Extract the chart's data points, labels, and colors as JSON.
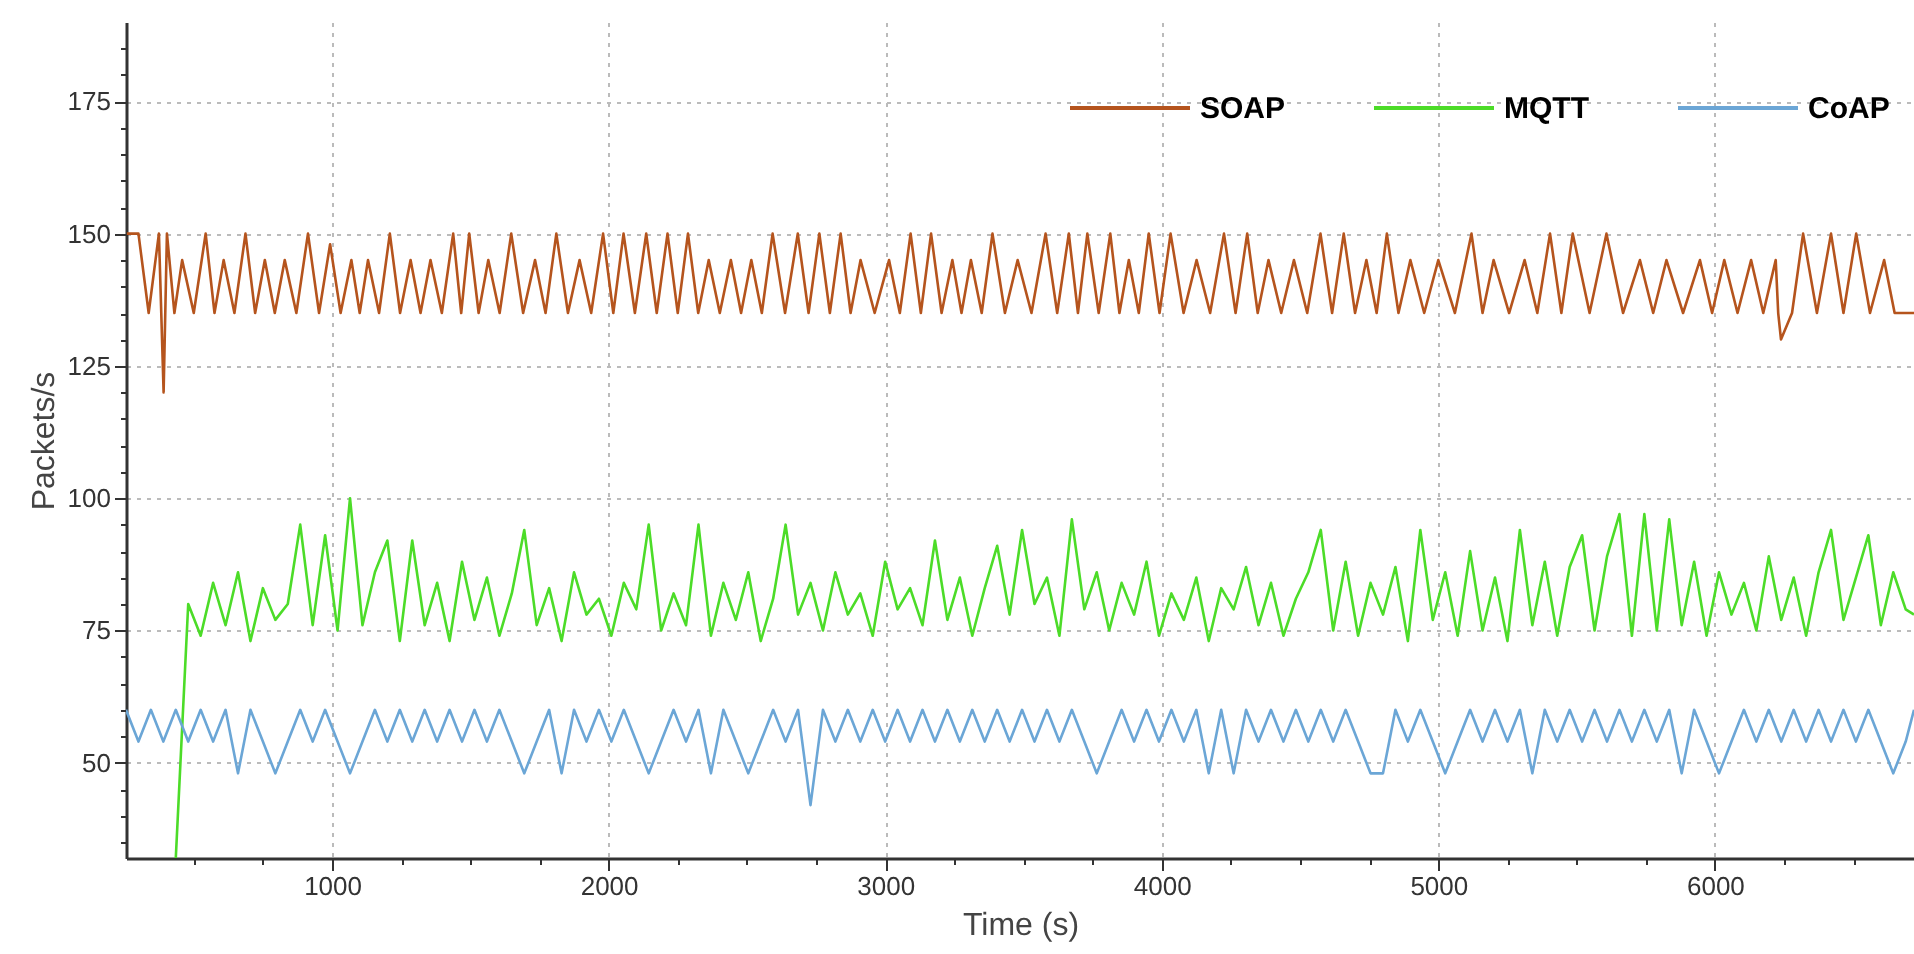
{
  "chart_data": {
    "type": "line",
    "xlabel": "Time (s)",
    "ylabel": "Packets/s",
    "xlim": [
      255,
      6720
    ],
    "ylim": [
      32,
      190
    ],
    "xticks": [
      {
        "value": 500,
        "label": null
      },
      {
        "value": 750,
        "label": null
      },
      1000,
      {
        "value": 1250,
        "label": null
      },
      {
        "value": 1500,
        "label": null
      },
      {
        "value": 1750,
        "label": null
      },
      2000,
      {
        "value": 2250,
        "label": null
      },
      {
        "value": 2500,
        "label": null
      },
      {
        "value": 2750,
        "label": null
      },
      3000,
      {
        "value": 3250,
        "label": null
      },
      {
        "value": 3500,
        "label": null
      },
      {
        "value": 3750,
        "label": null
      },
      4000,
      {
        "value": 4250,
        "label": null
      },
      {
        "value": 4500,
        "label": null
      },
      {
        "value": 4750,
        "label": null
      },
      5000,
      {
        "value": 5250,
        "label": null
      },
      {
        "value": 5500,
        "label": null
      },
      {
        "value": 5750,
        "label": null
      },
      6000,
      {
        "value": 6250,
        "label": null
      },
      {
        "value": 6500,
        "label": null
      }
    ],
    "yticks": [
      {
        "value": 35,
        "label": null
      },
      {
        "value": 40,
        "label": null
      },
      {
        "value": 45,
        "label": null
      },
      50,
      {
        "value": 55,
        "label": null
      },
      {
        "value": 60,
        "label": null
      },
      {
        "value": 65,
        "label": null
      },
      {
        "value": 70,
        "label": null
      },
      75,
      {
        "value": 80,
        "label": null
      },
      {
        "value": 85,
        "label": null
      },
      {
        "value": 90,
        "label": null
      },
      {
        "value": 95,
        "label": null
      },
      100,
      {
        "value": 105,
        "label": null
      },
      {
        "value": 110,
        "label": null
      },
      {
        "value": 115,
        "label": null
      },
      {
        "value": 120,
        "label": null
      },
      125,
      {
        "value": 130,
        "label": null
      },
      {
        "value": 135,
        "label": null
      },
      {
        "value": 140,
        "label": null
      },
      {
        "value": 145,
        "label": null
      },
      150,
      {
        "value": 155,
        "label": null
      },
      {
        "value": 160,
        "label": null
      },
      {
        "value": 165,
        "label": null
      },
      {
        "value": 170,
        "label": null
      },
      175,
      {
        "value": 180,
        "label": null
      },
      {
        "value": 185,
        "label": null
      }
    ],
    "grid": true,
    "legend": "top right",
    "x": [
      255,
      300,
      345,
      390,
      435,
      480,
      525,
      570,
      615,
      660,
      705,
      750,
      795,
      840,
      885,
      930,
      975,
      1020,
      1065,
      1110,
      1155,
      1200,
      1245,
      1290,
      1335,
      1380,
      1425,
      1470,
      1515,
      1560,
      1605,
      1650,
      1695,
      1740,
      1785,
      1830,
      1875,
      1920,
      1965,
      2010,
      2055,
      2100,
      2145,
      2190,
      2235,
      2280,
      2325,
      2370,
      2415,
      2460,
      2505,
      2550,
      2595,
      2640,
      2685,
      2730,
      2775,
      2820,
      2865,
      2910,
      2955,
      3000,
      3045,
      3090,
      3135,
      3180,
      3225,
      3270,
      3315,
      3360,
      3405,
      3450,
      3495,
      3540,
      3585,
      3630,
      3675,
      3720,
      3765,
      3810,
      3855,
      3900,
      3945,
      3990,
      4035,
      4080,
      4125,
      4170,
      4215,
      4260,
      4305,
      4350,
      4395,
      4440,
      4485,
      4530,
      4575,
      4620,
      4665,
      4710,
      4755,
      4800,
      4845,
      4890,
      4935,
      4980,
      5025,
      5070,
      5115,
      5160,
      5205,
      5250,
      5295,
      5340,
      5385,
      5430,
      5475,
      5520,
      5565,
      5610,
      5655,
      5700,
      5745,
      5790,
      5835,
      5880,
      5925,
      5970,
      6015,
      6060,
      6105,
      6150,
      6195,
      6240,
      6285,
      6330,
      6375,
      6420,
      6465,
      6510,
      6555,
      6600,
      6645,
      6690,
      6720
    ],
    "series": [
      {
        "name": "SOAP",
        "color": "#b5541d",
        "x": [
          258,
          300,
          337,
          374,
          391,
          403,
          430,
          458,
          500,
          543,
          575,
          608,
          647,
          687,
          722,
          757,
          793,
          829,
          871,
          913,
          953,
          993,
          1031,
          1070,
          1100,
          1130,
          1170,
          1209,
          1246,
          1284,
          1320,
          1356,
          1397,
          1438,
          1467,
          1496,
          1530,
          1565,
          1606,
          1648,
          1691,
          1734,
          1772,
          1811,
          1853,
          1895,
          1937,
          1980,
          2017,
          2054,
          2095,
          2136,
          2174,
          2213,
          2250,
          2287,
          2324,
          2362,
          2402,
          2442,
          2479,
          2516,
          2554,
          2593,
          2638,
          2684,
          2723,
          2762,
          2800,
          2839,
          2875,
          2911,
          2962,
          3014,
          3053,
          3092,
          3129,
          3166,
          3204,
          3243,
          3276,
          3310,
          3349,
          3388,
          3433,
          3479,
          3529,
          3580,
          3622,
          3664,
          3697,
          3731,
          3772,
          3814,
          3847,
          3881,
          3917,
          3953,
          3992,
          4032,
          4079,
          4126,
          4175,
          4225,
          4267,
          4309,
          4347,
          4386,
          4432,
          4478,
          4526,
          4574,
          4616,
          4658,
          4699,
          4740,
          4777,
          4814,
          4856,
          4899,
          4949,
          5000,
          5060,
          5120,
          5160,
          5200,
          5256,
          5312,
          5358,
          5404,
          5445,
          5486,
          5547,
          5608,
          5668,
          5729,
          5777,
          5825,
          5885,
          5946,
          5990,
          6034,
          6082,
          6131,
          6175,
          6220,
          6229,
          6239,
          6279,
          6319,
          6369,
          6420,
          6465,
          6511,
          6561,
          6612,
          6650,
          6720
        ],
        "values": [
          150,
          150,
          135,
          150,
          120,
          150,
          135,
          145,
          135,
          150,
          135,
          145,
          135,
          150,
          135,
          145,
          135,
          145,
          135,
          150,
          135,
          148,
          135,
          145,
          135,
          145,
          135,
          150,
          135,
          145,
          135,
          145,
          135,
          150,
          135,
          150,
          135,
          145,
          135,
          150,
          135,
          145,
          135,
          150,
          135,
          145,
          135,
          150,
          135,
          150,
          135,
          150,
          135,
          150,
          135,
          150,
          135,
          145,
          135,
          145,
          135,
          145,
          135,
          150,
          135,
          150,
          135,
          150,
          135,
          150,
          135,
          145,
          135,
          145,
          135,
          150,
          135,
          150,
          135,
          145,
          135,
          145,
          135,
          150,
          135,
          145,
          135,
          150,
          135,
          150,
          135,
          150,
          135,
          150,
          135,
          145,
          135,
          150,
          135,
          150,
          135,
          145,
          135,
          150,
          135,
          150,
          135,
          145,
          135,
          145,
          135,
          150,
          135,
          150,
          135,
          145,
          135,
          150,
          135,
          145,
          135,
          145,
          135,
          150,
          135,
          145,
          135,
          145,
          135,
          150,
          135,
          150,
          135,
          150,
          135,
          145,
          135,
          145,
          135,
          145,
          135,
          145,
          135,
          145,
          135,
          145,
          135,
          130,
          135,
          150,
          135,
          150,
          135,
          150,
          135,
          145,
          135,
          135
        ]
      },
      {
        "name": "MQTT",
        "color": "#4cdc28",
        "values": [
          null,
          null,
          null,
          null,
          32,
          80,
          74,
          84,
          76,
          86,
          73,
          83,
          77,
          80,
          95,
          76,
          93,
          75,
          100,
          76,
          86,
          92,
          73,
          92,
          76,
          84,
          73,
          88,
          77,
          85,
          74,
          82,
          94,
          76,
          83,
          73,
          86,
          78,
          81,
          74,
          84,
          79,
          95,
          75,
          82,
          76,
          95,
          74,
          84,
          77,
          86,
          73,
          81,
          95,
          78,
          84,
          75,
          86,
          78,
          82,
          74,
          88,
          79,
          83,
          76,
          92,
          77,
          85,
          74,
          83,
          91,
          78,
          94,
          80,
          85,
          74,
          96,
          79,
          86,
          75,
          84,
          78,
          88,
          74,
          82,
          77,
          85,
          73,
          83,
          79,
          87,
          76,
          84,
          74,
          81,
          86,
          94,
          75,
          88,
          74,
          84,
          78,
          87,
          73,
          94,
          77,
          86,
          74,
          90,
          75,
          85,
          73,
          94,
          76,
          88,
          74,
          87,
          93,
          75,
          89,
          97,
          74,
          97,
          75,
          96,
          76,
          88,
          74,
          86,
          78,
          84,
          75,
          89,
          77,
          85,
          74,
          86,
          94,
          77,
          85,
          93,
          76,
          86,
          79,
          78
        ]
      },
      {
        "name": "CoAP",
        "color": "#6ba6d6",
        "values": [
          60,
          54,
          60,
          54,
          60,
          54,
          60,
          54,
          60,
          48,
          60,
          54,
          48,
          54,
          60,
          54,
          60,
          54,
          48,
          54,
          60,
          54,
          60,
          54,
          60,
          54,
          60,
          54,
          60,
          54,
          60,
          54,
          48,
          54,
          60,
          48,
          60,
          54,
          60,
          54,
          60,
          54,
          48,
          54,
          60,
          54,
          60,
          48,
          60,
          54,
          48,
          54,
          60,
          54,
          60,
          42,
          60,
          54,
          60,
          54,
          60,
          54,
          60,
          54,
          60,
          54,
          60,
          54,
          60,
          54,
          60,
          54,
          60,
          54,
          60,
          54,
          60,
          54,
          48,
          54,
          60,
          54,
          60,
          54,
          60,
          54,
          60,
          48,
          60,
          48,
          60,
          54,
          60,
          54,
          60,
          54,
          60,
          54,
          60,
          54,
          48,
          48,
          60,
          54,
          60,
          54,
          48,
          54,
          60,
          54,
          60,
          54,
          60,
          48,
          60,
          54,
          60,
          54,
          60,
          54,
          60,
          54,
          60,
          54,
          60,
          48,
          60,
          54,
          48,
          54,
          60,
          54,
          60,
          54,
          60,
          54,
          60,
          54,
          60,
          54,
          60,
          54,
          48,
          54,
          60
        ]
      }
    ]
  }
}
